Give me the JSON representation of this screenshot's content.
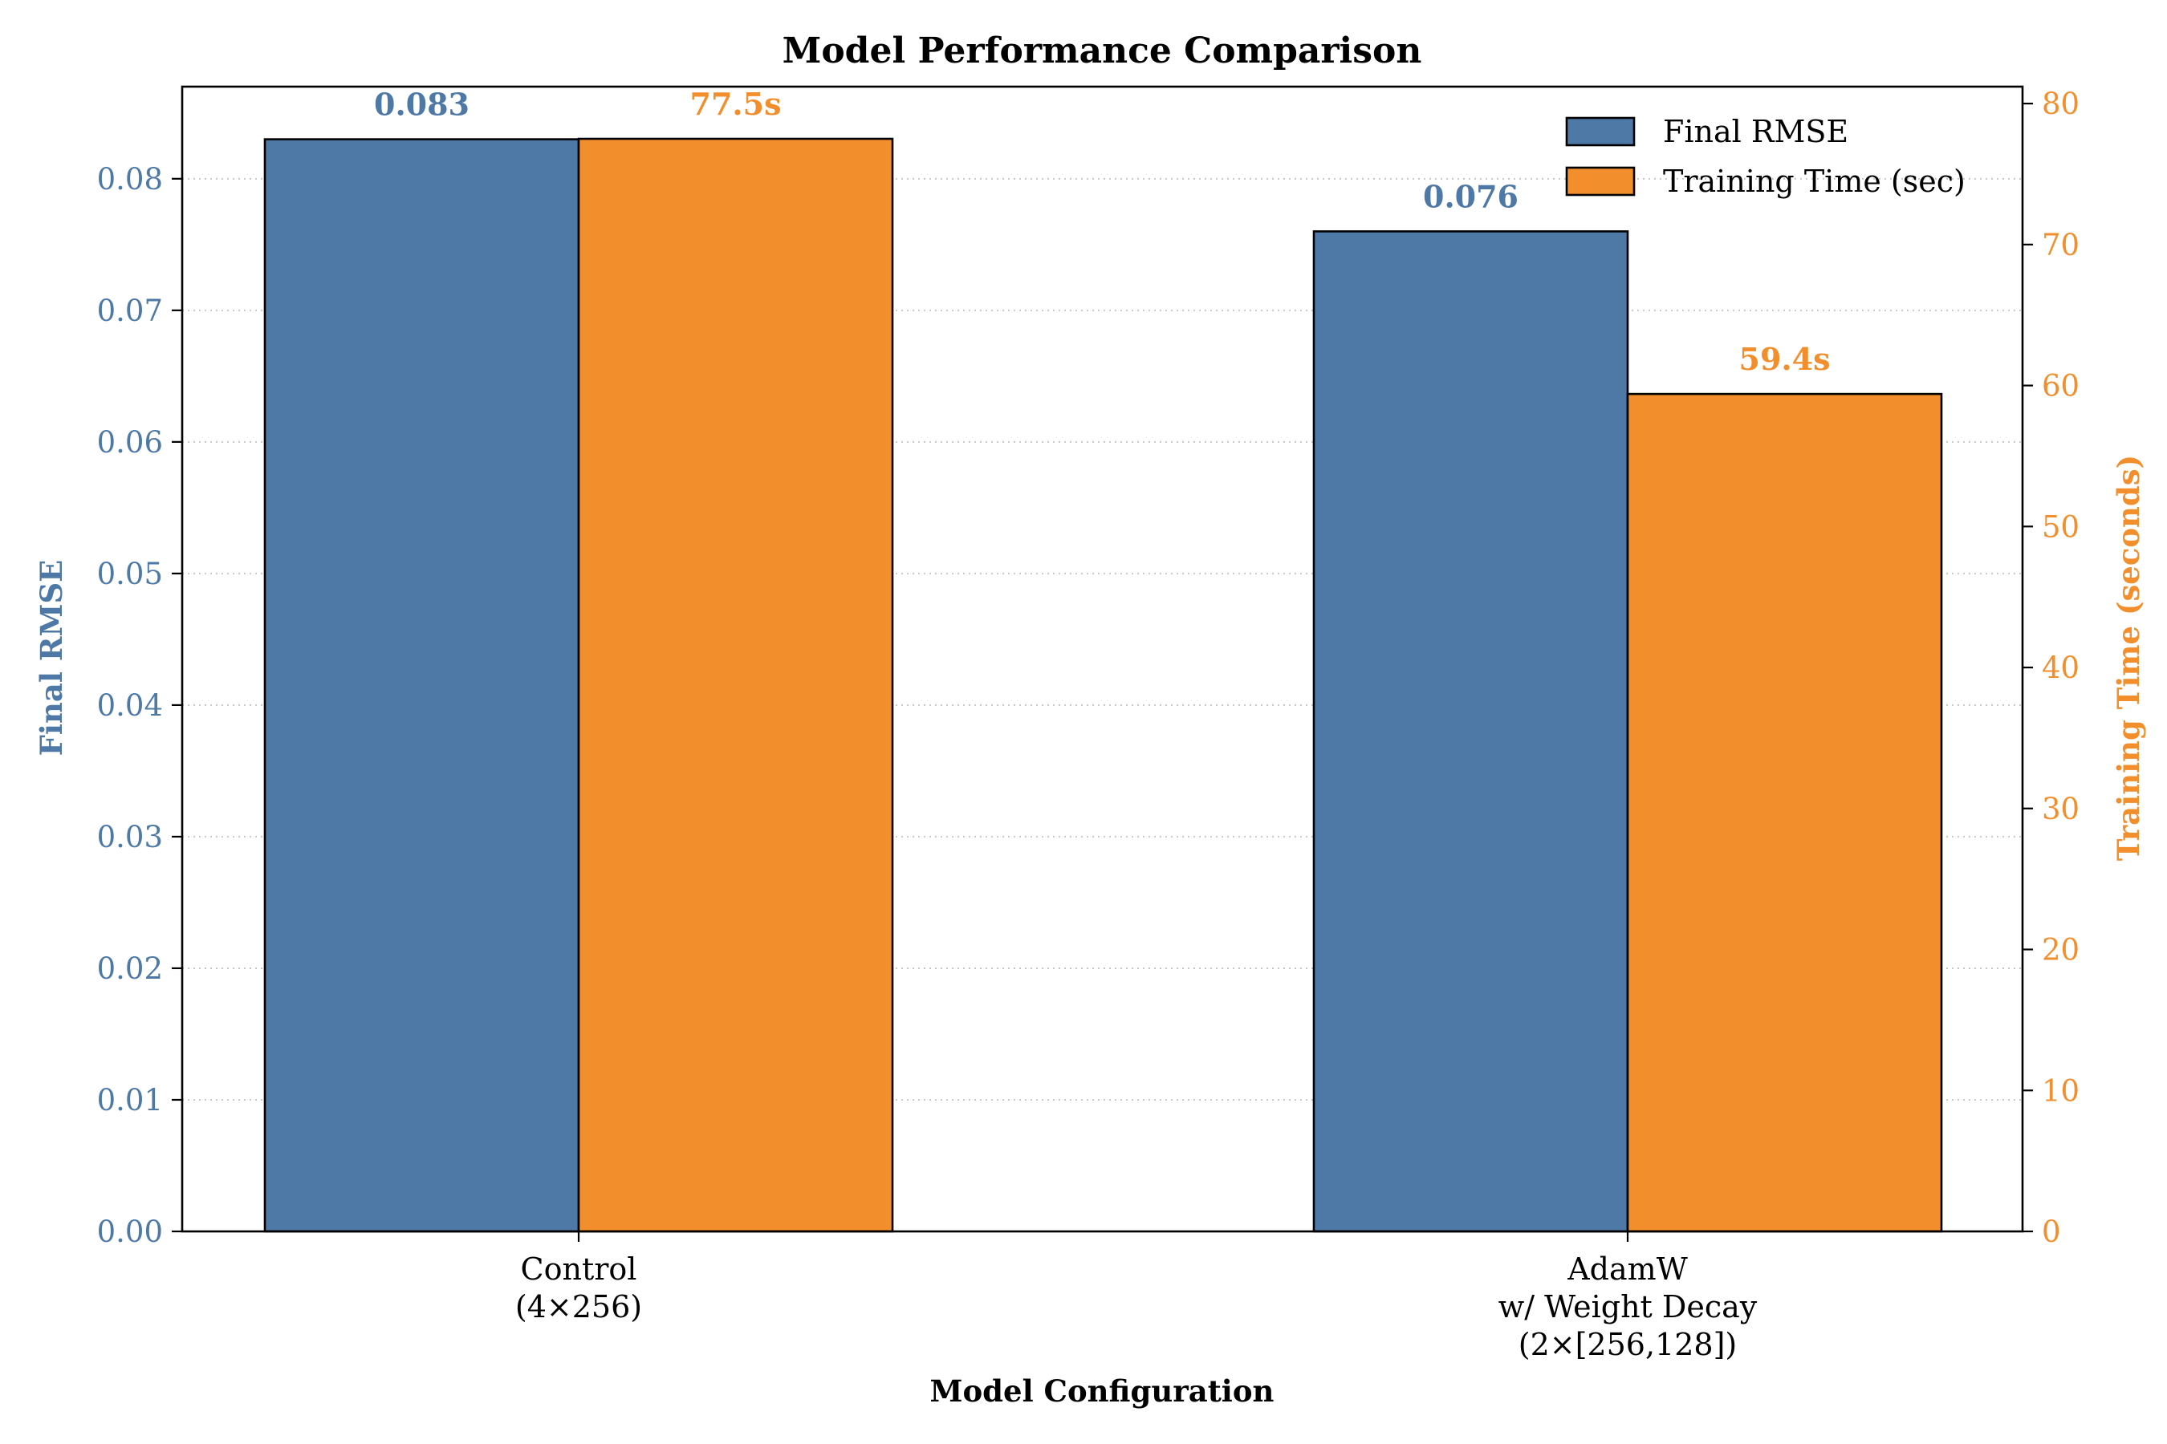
{
  "chart_data": {
    "type": "bar",
    "title": "Model Performance Comparison",
    "xlabel": "Model Configuration",
    "ylabel": "Final RMSE",
    "y2label": "Training Time (seconds)",
    "categories": [
      [
        "Control",
        "(4×256)"
      ],
      [
        "AdamW",
        "w/ Weight Decay",
        "(2×[256,128])"
      ]
    ],
    "ylim": [
      0,
      0.087
    ],
    "y2lim": [
      0,
      81.2
    ],
    "yticks": [
      "0.00",
      "0.01",
      "0.02",
      "0.03",
      "0.04",
      "0.05",
      "0.06",
      "0.07",
      "0.08"
    ],
    "y2ticks": [
      "0",
      "10",
      "20",
      "30",
      "40",
      "50",
      "60",
      "70",
      "80"
    ],
    "grid": "horizontal dotted",
    "legend_position": "top-right",
    "series": [
      {
        "name": "Final RMSE",
        "axis": "left",
        "color": "#4e79a7",
        "values": [
          0.083,
          0.076
        ],
        "labels": [
          "0.083",
          "0.076"
        ]
      },
      {
        "name": "Training Time (sec)",
        "axis": "right",
        "color": "#f28e2b",
        "values": [
          77.5,
          59.4
        ],
        "labels": [
          "77.5s",
          "59.4s"
        ]
      }
    ]
  }
}
